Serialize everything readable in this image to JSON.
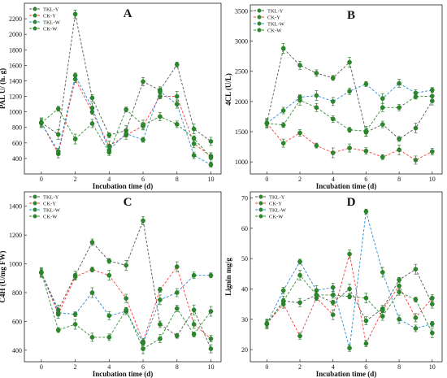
{
  "figure": {
    "panels": [
      {
        "letter": "A",
        "xlabel": "Incubation time (d)",
        "ylabel": "PAL U/ (h. g)"
      },
      {
        "letter": "B",
        "xlabel": "Incubation time (d)",
        "ylabel": "4CL (U/L)"
      },
      {
        "letter": "C",
        "xlabel": "Incubation time (d)",
        "ylabel": "C4H (U/mg FW)"
      },
      {
        "letter": "D",
        "xlabel": "Incubation time (d)",
        "ylabel": "Lignin mg/g"
      }
    ]
  },
  "chart_data": [
    {
      "type": "line",
      "title": "A",
      "xlabel": "Incubation time (d)",
      "ylabel": "PAL U/ (h. g)",
      "xlim": [
        -1,
        10.6
      ],
      "ylim": [
        200,
        2400
      ],
      "xticks": [
        0,
        2,
        4,
        6,
        8,
        10
      ],
      "yticks": [
        400,
        600,
        800,
        1000,
        1200,
        1400,
        1600,
        1800,
        2000,
        2200
      ],
      "legend_position": "top-left",
      "x": [
        0,
        1,
        2,
        3,
        4,
        5,
        6,
        7,
        8,
        9,
        10
      ],
      "series": [
        {
          "name": "TKL-Y",
          "color": "#555555",
          "values": [
            860,
            710,
            2260,
            1180,
            700,
            760,
            1390,
            1280,
            1610,
            780,
            620
          ]
        },
        {
          "name": "CK-Y",
          "color": "#ff3b3b",
          "values": [
            860,
            460,
            1420,
            1000,
            560,
            700,
            820,
            1200,
            1200,
            590,
            430
          ]
        },
        {
          "name": "TKL-W",
          "color": "#2a8bd4",
          "values": [
            860,
            490,
            1470,
            1050,
            510,
            720,
            640,
            1260,
            1100,
            440,
            320
          ]
        },
        {
          "name": "CK-W",
          "color": "#2f8a2f",
          "values": [
            860,
            1040,
            650,
            850,
            480,
            1030,
            830,
            940,
            840,
            660,
            410
          ]
        }
      ]
    },
    {
      "type": "line",
      "title": "B",
      "xlabel": "Incubation time (d)",
      "ylabel": "4CL (U/L)",
      "xlim": [
        -1,
        10.6
      ],
      "ylim": [
        800,
        3600
      ],
      "xticks": [
        0,
        2,
        4,
        6,
        8,
        10
      ],
      "yticks": [
        1000,
        1500,
        2000,
        2500,
        3000,
        3500
      ],
      "legend_position": "top-left",
      "x": [
        0,
        1,
        2,
        3,
        4,
        5,
        6,
        7,
        8,
        9,
        10
      ],
      "series": [
        {
          "name": "TKL-Y",
          "color": "#555555",
          "values": [
            1640,
            2880,
            2600,
            2470,
            2390,
            2650,
            1490,
            1620,
            1380,
            1560,
            2010
          ]
        },
        {
          "name": "CK-Y",
          "color": "#ff3b3b",
          "values": [
            1640,
            1310,
            1480,
            1270,
            1150,
            1230,
            1180,
            1080,
            1200,
            1030,
            1170
          ]
        },
        {
          "name": "TKL-W",
          "color": "#2a8bd4",
          "values": [
            1640,
            1850,
            2070,
            2100,
            2000,
            2170,
            2290,
            2050,
            2300,
            2140,
            2190
          ]
        },
        {
          "name": "CK-W",
          "color": "#2f8a2f",
          "values": [
            1640,
            1610,
            2020,
            1900,
            1710,
            1530,
            1510,
            1900,
            1900,
            2080,
            2090
          ]
        }
      ]
    },
    {
      "type": "line",
      "title": "C",
      "xlabel": "Incubation time (d)",
      "ylabel": "C4H (U/mg FW)",
      "xlim": [
        -1,
        10.6
      ],
      "ylim": [
        320,
        1500
      ],
      "xticks": [
        0,
        2,
        4,
        6,
        8,
        10
      ],
      "yticks": [
        400,
        600,
        800,
        1000,
        1200,
        1400
      ],
      "legend_position": "top-left",
      "x": [
        0,
        1,
        2,
        3,
        4,
        5,
        6,
        7,
        8,
        9,
        10
      ],
      "series": [
        {
          "name": "TKL-Y",
          "color": "#555555",
          "values": [
            940,
            680,
            920,
            1150,
            1020,
            990,
            1300,
            580,
            500,
            680,
            410
          ]
        },
        {
          "name": "CK-Y",
          "color": "#ff3b3b",
          "values": [
            940,
            650,
            910,
            960,
            920,
            760,
            460,
            820,
            980,
            580,
            480
          ]
        },
        {
          "name": "TKL-W",
          "color": "#2a8bd4",
          "values": [
            940,
            660,
            650,
            800,
            640,
            670,
            450,
            750,
            800,
            920,
            920
          ]
        },
        {
          "name": "CK-W",
          "color": "#2f8a2f",
          "values": [
            940,
            540,
            580,
            490,
            490,
            680,
            410,
            480,
            690,
            510,
            670
          ]
        }
      ]
    },
    {
      "type": "line",
      "title": "D",
      "xlabel": "Incubation time (d)",
      "ylabel": "Lignin mg/g",
      "xlim": [
        -1,
        10.6
      ],
      "ylim": [
        16,
        72
      ],
      "xticks": [
        0,
        2,
        4,
        6,
        8,
        10
      ],
      "yticks": [
        20,
        30,
        40,
        50,
        60,
        70
      ],
      "legend_position": "top-left",
      "x": [
        0,
        1,
        2,
        3,
        4,
        5,
        6,
        7,
        8,
        9,
        10
      ],
      "series": [
        {
          "name": "TKL-Y",
          "color": "#555555",
          "values": [
            28.5,
            36,
            35.5,
            38,
            35.5,
            40,
            29.5,
            33.5,
            43,
            46.5,
            35
          ]
        },
        {
          "name": "CK-Y",
          "color": "#ff3b3b",
          "values": [
            28.5,
            35,
            24.5,
            37,
            31.5,
            51.5,
            22,
            33,
            41,
            30.5,
            37
          ]
        },
        {
          "name": "TKL-W",
          "color": "#2a8bd4",
          "values": [
            28.5,
            39.5,
            49,
            39.5,
            40.5,
            20.5,
            65.5,
            45.5,
            30,
            27,
            28.5
          ]
        },
        {
          "name": "CK-W",
          "color": "#2f8a2f",
          "values": [
            28.5,
            36,
            44.5,
            38,
            38,
            37.5,
            37,
            31,
            39,
            36.5,
            25.5
          ]
        }
      ]
    }
  ]
}
